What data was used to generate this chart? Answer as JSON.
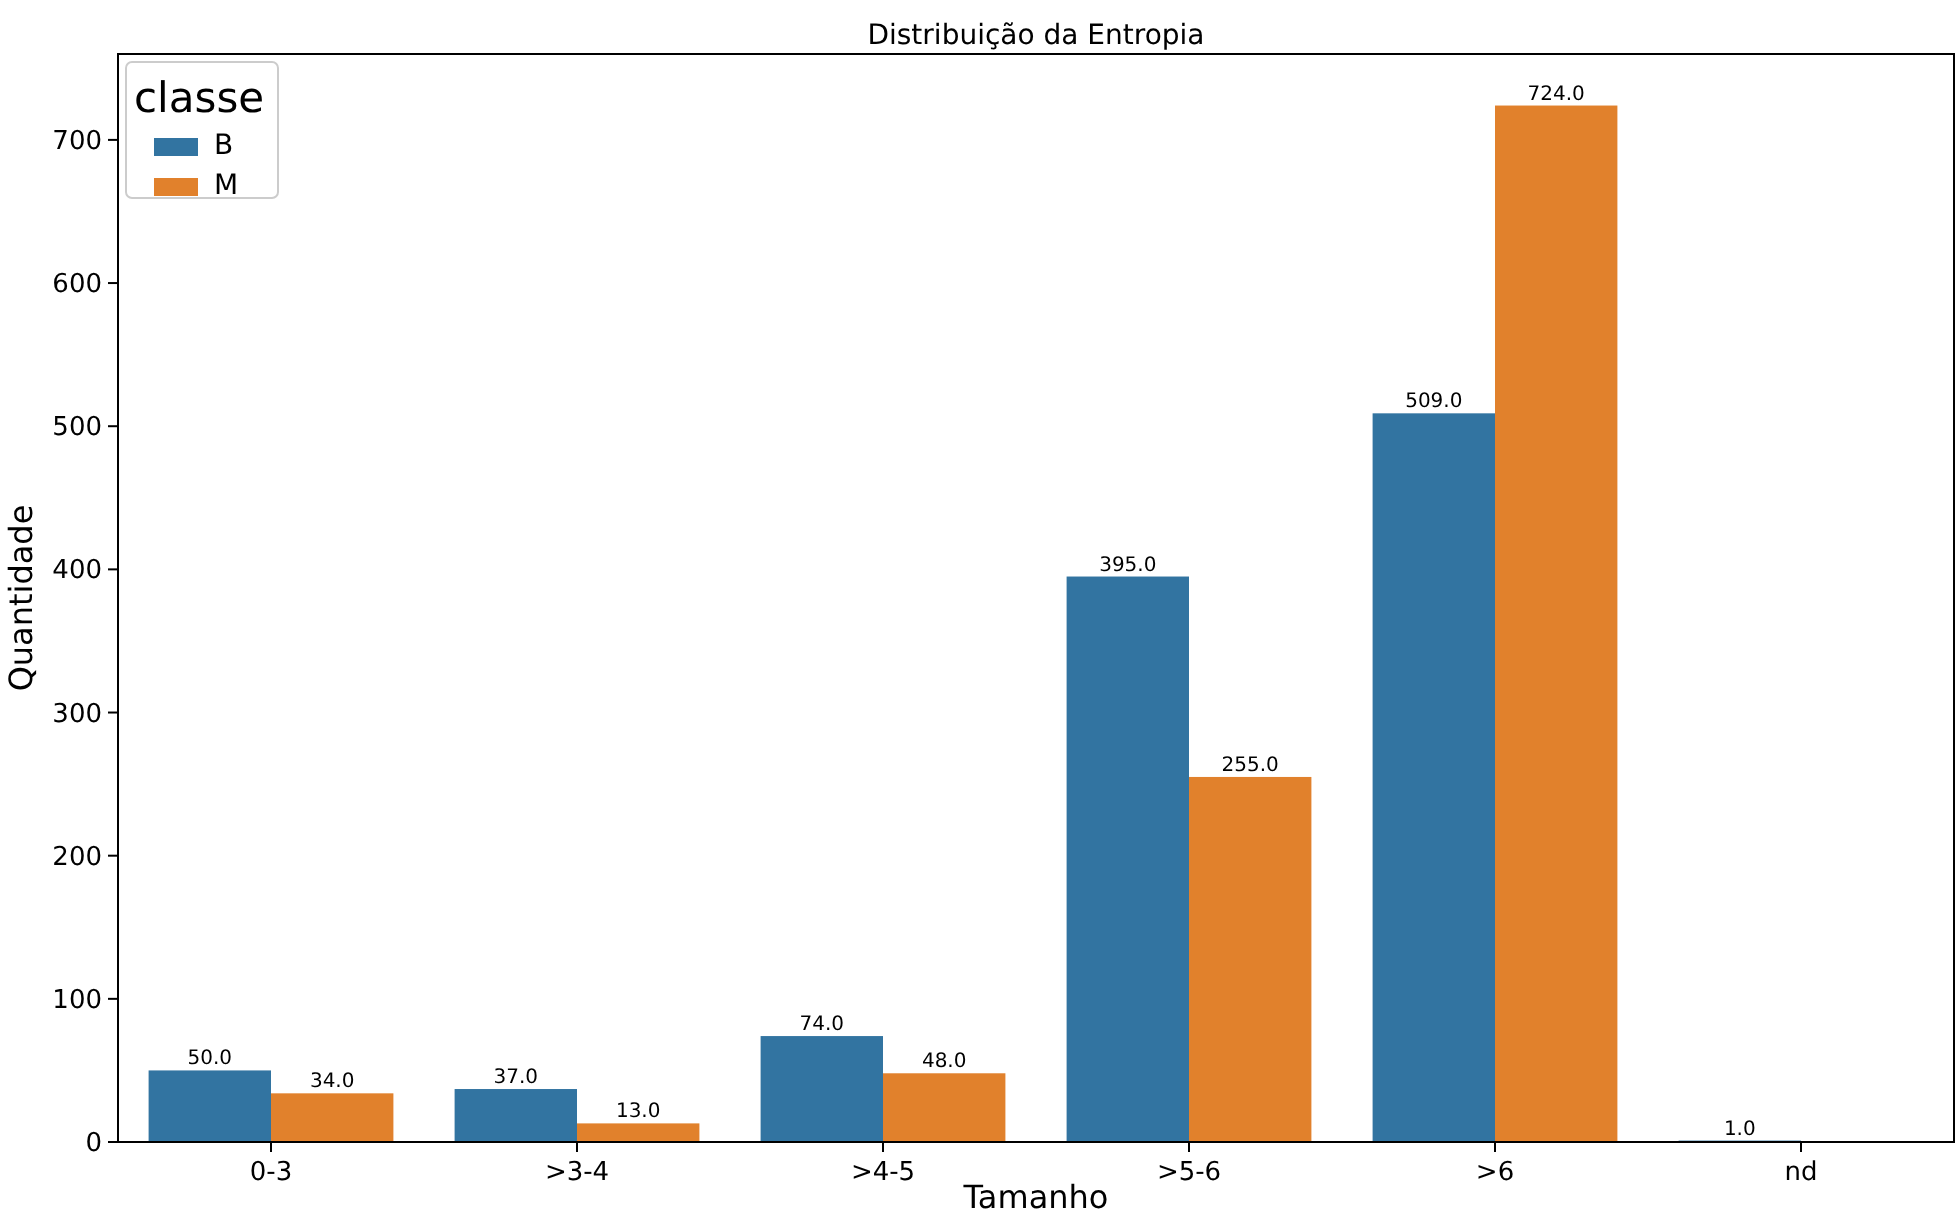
{
  "chart_data": {
    "type": "bar",
    "title": "Distribuição da Entropia",
    "xlabel": "Tamanho",
    "ylabel": "Quantidade",
    "legend_title": "classe",
    "legend": "top left",
    "categories": [
      "0-3",
      ">3-4",
      ">4-5",
      ">5-6",
      ">6",
      "nd"
    ],
    "series": [
      {
        "name": "B",
        "color": "#3274a1",
        "values": [
          50,
          37,
          74,
          395,
          509,
          1
        ],
        "value_labels": [
          "50.0",
          "37.0",
          "74.0",
          "395.0",
          "509.0",
          "1.0"
        ]
      },
      {
        "name": "M",
        "color": "#e1812c",
        "values": [
          34,
          13,
          48,
          255,
          724,
          null
        ],
        "value_labels": [
          "34.0",
          "13.0",
          "48.0",
          "255.0",
          "724.0",
          null
        ]
      }
    ],
    "ylim": [
      0,
      760
    ],
    "yticks": [
      0,
      100,
      200,
      300,
      400,
      500,
      600,
      700
    ],
    "grid": false
  }
}
